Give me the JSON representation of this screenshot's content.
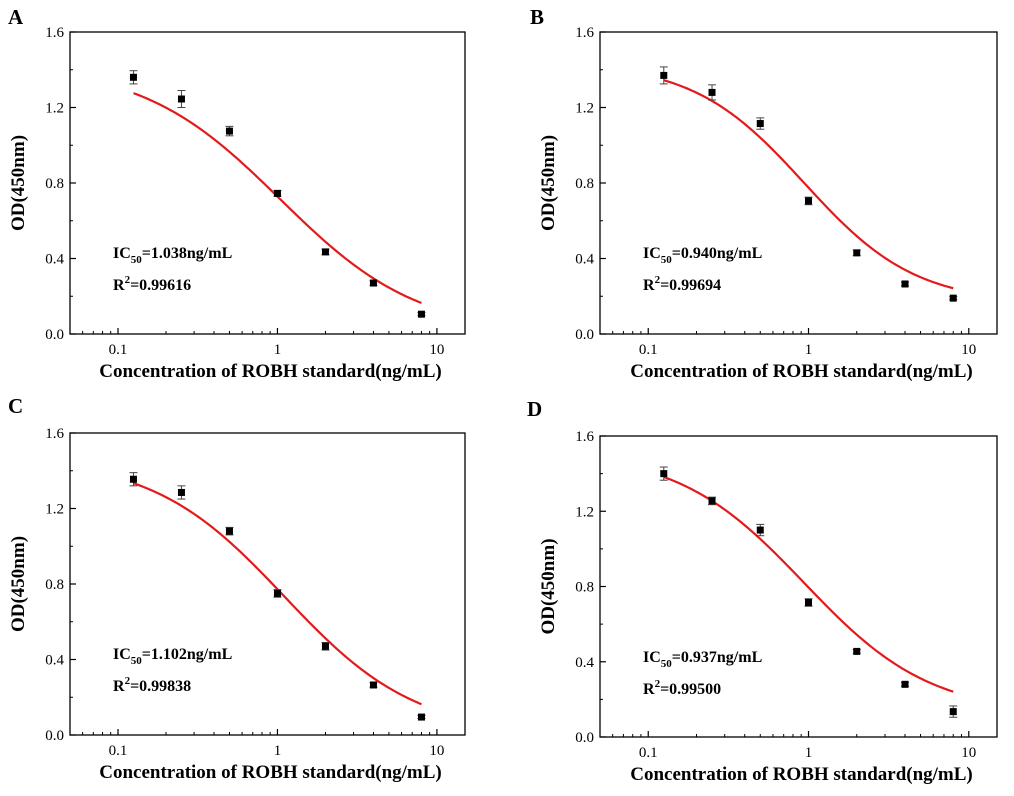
{
  "colors": {
    "curve": "#e31a1c",
    "marker": "#000000",
    "axis": "#000000"
  },
  "chart_data": [
    {
      "panel": "A",
      "type": "scatter",
      "xscale": "log",
      "xlabel": "Concentration of ROBH standard(ng/mL)",
      "ylabel": "OD(450nm)",
      "xlim": [
        0.05,
        15
      ],
      "ylim": [
        0.0,
        1.6
      ],
      "xticks": [
        "0.1",
        "1",
        "10"
      ],
      "yticks": [
        "0.0",
        "0.4",
        "0.8",
        "1.2",
        "1.6"
      ],
      "x": [
        0.125,
        0.25,
        0.5,
        1,
        2,
        4,
        8
      ],
      "y": [
        1.36,
        1.245,
        1.075,
        0.745,
        0.435,
        0.27,
        0.105
      ],
      "yerr": [
        0.035,
        0.045,
        0.025,
        0.015,
        0.015,
        0.012,
        0.008
      ],
      "fit": {
        "top": 1.43,
        "bottom": 0.0,
        "ic50": 1.038,
        "hill": 1.0
      },
      "ic50_label": "1.038ng/mL",
      "r2_label": "0.99616"
    },
    {
      "panel": "B",
      "type": "scatter",
      "xscale": "log",
      "xlabel": "Concentration of ROBH standard(ng/mL)",
      "ylabel": "OD(450nm)",
      "xlim": [
        0.05,
        15
      ],
      "ylim": [
        0.0,
        1.6
      ],
      "xticks": [
        "0.1",
        "1",
        "10"
      ],
      "yticks": [
        "0.0",
        "0.4",
        "0.8",
        "1.2",
        "1.6"
      ],
      "x": [
        0.125,
        0.25,
        0.5,
        1,
        2,
        4,
        8
      ],
      "y": [
        1.37,
        1.28,
        1.115,
        0.705,
        0.43,
        0.265,
        0.19
      ],
      "yerr": [
        0.045,
        0.04,
        0.03,
        0.02,
        0.015,
        0.01,
        0.008
      ],
      "fit": {
        "top": 1.44,
        "bottom": 0.16,
        "ic50": 0.94,
        "hill": 1.25
      },
      "ic50_label": "0.940ng/mL",
      "r2_label": "0.99694"
    },
    {
      "panel": "C",
      "type": "scatter",
      "xscale": "log",
      "xlabel": "Concentration of ROBH standard(ng/mL)",
      "ylabel": "OD(450nm)",
      "xlim": [
        0.05,
        15
      ],
      "ylim": [
        0.0,
        1.6
      ],
      "xticks": [
        "0.1",
        "1",
        "10"
      ],
      "yticks": [
        "0.0",
        "0.4",
        "0.8",
        "1.2",
        "1.6"
      ],
      "x": [
        0.125,
        0.25,
        0.5,
        1,
        2,
        4,
        8
      ],
      "y": [
        1.355,
        1.285,
        1.08,
        0.75,
        0.47,
        0.265,
        0.095
      ],
      "yerr": [
        0.035,
        0.035,
        0.02,
        0.02,
        0.02,
        0.012,
        0.008
      ],
      "fit": {
        "top": 1.47,
        "bottom": 0.0,
        "ic50": 1.102,
        "hill": 1.05
      },
      "ic50_label": "1.102ng/mL",
      "r2_label": "0.99838"
    },
    {
      "panel": "D",
      "type": "scatter",
      "xscale": "log",
      "xlabel": "Concentration of ROBH standard(ng/mL)",
      "ylabel": "OD(450nm)",
      "xlim": [
        0.05,
        15
      ],
      "ylim": [
        0.0,
        1.6
      ],
      "xticks": [
        "0.1",
        "1",
        "10"
      ],
      "yticks": [
        "0.0",
        "0.4",
        "0.8",
        "1.2",
        "1.6"
      ],
      "x": [
        0.125,
        0.25,
        0.5,
        1,
        2,
        4,
        8
      ],
      "y": [
        1.4,
        1.255,
        1.1,
        0.715,
        0.455,
        0.28,
        0.135
      ],
      "yerr": [
        0.035,
        0.02,
        0.03,
        0.02,
        0.01,
        0.01,
        0.03
      ],
      "fit": {
        "top": 1.52,
        "bottom": 0.12,
        "ic50": 0.937,
        "hill": 1.1
      },
      "ic50_label": "0.937ng/mL",
      "r2_label": "0.99500"
    }
  ]
}
